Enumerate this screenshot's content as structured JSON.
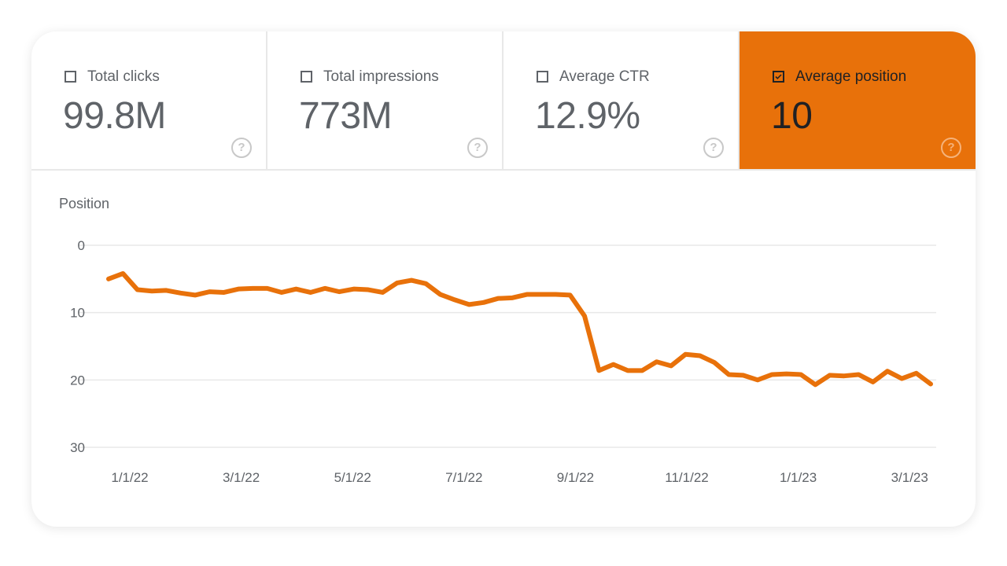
{
  "metrics": [
    {
      "label": "Total clicks",
      "value": "99.8M",
      "checked": false
    },
    {
      "label": "Total impressions",
      "value": "773M",
      "checked": false
    },
    {
      "label": "Average CTR",
      "value": "12.9%",
      "checked": false
    },
    {
      "label": "Average position",
      "value": "10",
      "checked": true
    }
  ],
  "help_icon": "?",
  "colors": {
    "accent": "#E8710A",
    "grid": "#e8e8e8",
    "text": "#5f6368"
  },
  "chart_data": {
    "type": "line",
    "ylabel": "Position",
    "yaxis_reversed": true,
    "ylim": [
      0,
      30
    ],
    "yticks": [
      "0",
      "10",
      "20",
      "30"
    ],
    "xticks": [
      "1/1/22",
      "3/1/22",
      "5/1/22",
      "7/1/22",
      "9/1/22",
      "11/1/22",
      "1/1/23",
      "3/1/23"
    ],
    "grid": true,
    "series": [
      {
        "values": [
          5.0,
          4.2,
          6.6,
          6.8,
          6.7,
          7.1,
          7.4,
          6.9,
          7.0,
          6.5,
          6.4,
          6.4,
          7.0,
          6.5,
          7.0,
          6.4,
          6.9,
          6.5,
          6.6,
          7.0,
          5.6,
          5.2,
          5.7,
          7.3,
          8.1,
          8.8,
          8.5,
          7.9,
          7.8,
          7.3,
          7.3,
          7.3,
          7.4,
          10.5,
          18.6,
          17.7,
          18.6,
          18.6,
          17.3,
          17.9,
          16.2,
          16.4,
          17.4,
          19.2,
          19.3,
          20.0,
          19.2,
          19.1,
          19.2,
          20.7,
          19.3,
          19.4,
          19.2,
          20.3,
          18.7,
          19.8,
          19.0,
          20.6
        ]
      }
    ]
  }
}
